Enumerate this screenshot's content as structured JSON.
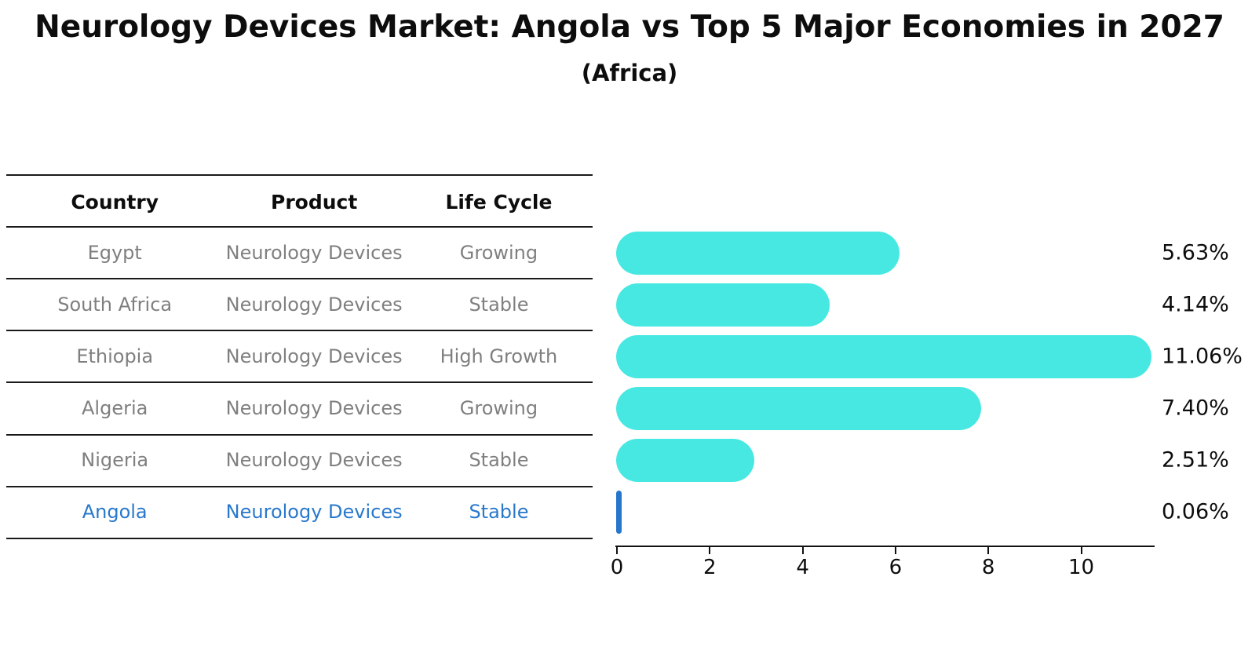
{
  "header": {
    "title": "Neurology Devices Market: Angola vs Top 5 Major Economies in 2027",
    "subtitle": "(Africa)"
  },
  "table": {
    "headers": [
      "Country",
      "Product",
      "Life Cycle"
    ],
    "rows": [
      {
        "country": "Egypt",
        "product": "Neurology Devices",
        "life_cycle": "Growing",
        "highlighted": false
      },
      {
        "country": "South Africa",
        "product": "Neurology Devices",
        "life_cycle": "Stable",
        "highlighted": false
      },
      {
        "country": "Ethiopia",
        "product": "Neurology Devices",
        "life_cycle": "High Growth",
        "highlighted": false
      },
      {
        "country": "Algeria",
        "product": "Neurology Devices",
        "life_cycle": "Growing",
        "highlighted": false
      },
      {
        "country": "Nigeria",
        "product": "Neurology Devices",
        "life_cycle": "Stable",
        "highlighted": false
      },
      {
        "country": "Angola",
        "product": "Neurology Devices",
        "life_cycle": "Stable",
        "highlighted": true
      }
    ],
    "text_color": "#7f7f7f",
    "highlight_text_color": "#2878cc"
  },
  "chart_data": {
    "type": "bar",
    "orientation": "horizontal",
    "title": "Neurology Devices Market: Angola vs Top 5 Major Economies in 2027",
    "subtitle": "(Africa)",
    "categories": [
      "Egypt",
      "South Africa",
      "Ethiopia",
      "Algeria",
      "Nigeria",
      "Angola"
    ],
    "values": [
      5.63,
      4.14,
      11.06,
      7.4,
      2.51,
      0.06
    ],
    "value_labels": [
      "5.63%",
      "4.14%",
      "11.06%",
      "7.40%",
      "2.51%",
      "0.06%"
    ],
    "xlim": [
      0,
      11.6
    ],
    "x_ticks": [
      0,
      2,
      4,
      6,
      8,
      10
    ],
    "grid": false,
    "legend": "none",
    "bar_color": "#48e8e2",
    "highlight_color": "#2776cc",
    "highlight_index": 5
  }
}
